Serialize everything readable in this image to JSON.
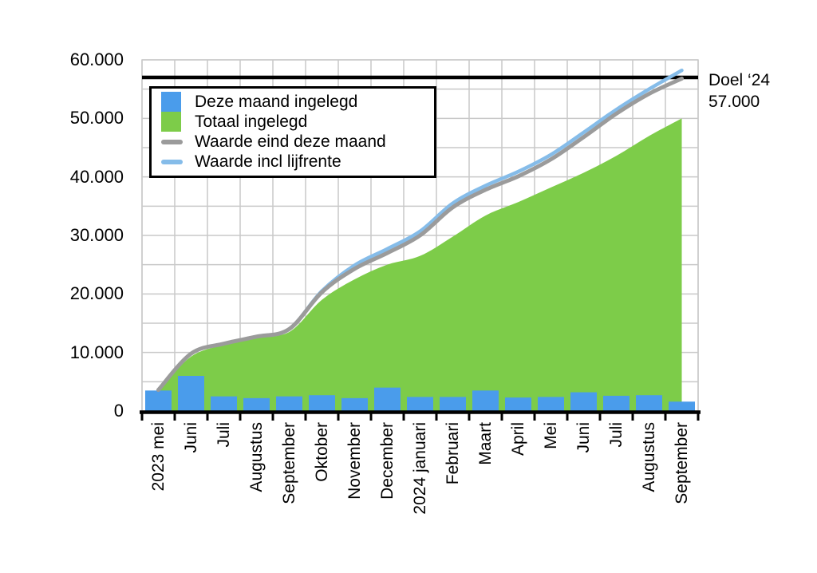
{
  "page": {
    "background": "#ffffff"
  },
  "chart_data": {
    "type": "combo",
    "title": "",
    "categories": [
      "2023 mei",
      "Juni",
      "Juli",
      "Augustus",
      "September",
      "Oktober",
      "November",
      "December",
      "2024 januari",
      "Februari",
      "Maart",
      "April",
      "Mei",
      "Juni",
      "Juli",
      "Augustus",
      "September"
    ],
    "series": [
      {
        "name": "Deze maand ingelegd",
        "type": "bar",
        "color": "#4a9ceb",
        "values": [
          3500,
          6000,
          2500,
          2200,
          2500,
          2700,
          2200,
          4000,
          2400,
          2400,
          3500,
          2300,
          2400,
          3200,
          2600,
          2700,
          1600
        ]
      },
      {
        "name": "Totaal ingelegd",
        "type": "area",
        "color": "#7dcc49",
        "values": [
          3500,
          9300,
          11300,
          12700,
          13500,
          19000,
          22500,
          25000,
          26500,
          29800,
          33400,
          35700,
          38200,
          40700,
          43600,
          47000,
          50000
        ]
      },
      {
        "name": "Waarde eind deze maand",
        "type": "line",
        "color": "#9b9b9b",
        "values": [
          3600,
          9800,
          11500,
          12700,
          14000,
          20300,
          24300,
          27000,
          30000,
          34800,
          37800,
          40100,
          43000,
          46800,
          50800,
          54200,
          56800
        ]
      },
      {
        "name": "Waarde incl lijfrente",
        "type": "line",
        "color": "#85bce9",
        "values": [
          3600,
          9800,
          11500,
          12700,
          14000,
          20500,
          24900,
          27700,
          30700,
          35500,
          38500,
          40900,
          43800,
          47600,
          51500,
          55000,
          58200
        ]
      }
    ],
    "y_axis": {
      "min": 0,
      "max": 60000,
      "minor_step": 5000,
      "major_step": 10000,
      "tick_labels": [
        "0",
        "10.000",
        "20.000",
        "30.000",
        "40.000",
        "50.000",
        "60.000"
      ]
    },
    "x_axis": {
      "label_rotation": -90
    },
    "goal_line": {
      "label": "Doel ‘24",
      "value": 57000,
      "value_label": "57.000",
      "color": "#000000"
    },
    "legend_position": "top-left-inside",
    "grid": true,
    "colors": {
      "grid": "#c9c9c9",
      "axis": "#000000",
      "plot_border": "#c9c9c9",
      "background": "#ffffff"
    }
  }
}
